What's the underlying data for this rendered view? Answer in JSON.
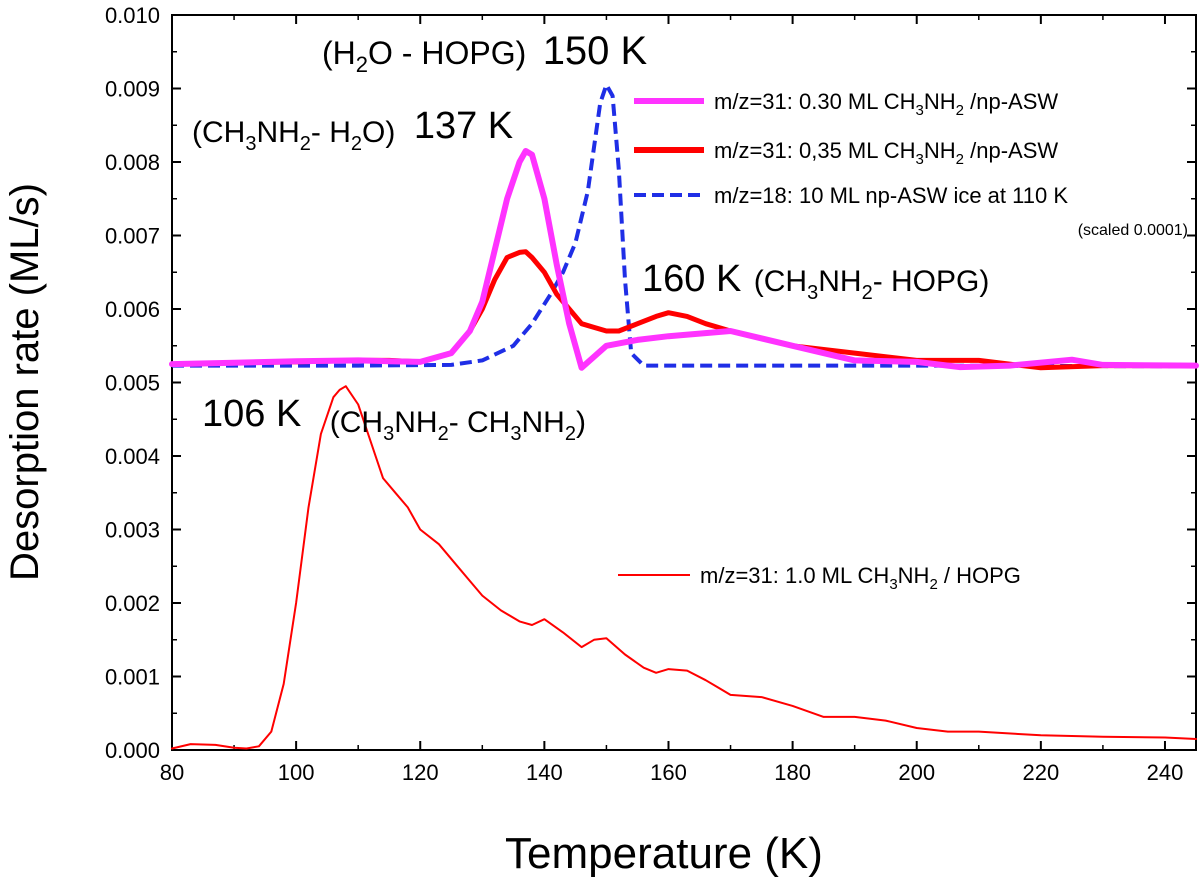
{
  "chart_data": {
    "type": "line",
    "xlabel": "Temperature (K)",
    "ylabel": "Desorption rate (ML/s)",
    "xlim": [
      80,
      245
    ],
    "ylim": [
      0.0,
      0.01
    ],
    "xticks": [
      80,
      100,
      120,
      140,
      160,
      180,
      200,
      220,
      240
    ],
    "xtick_labels": [
      "80",
      "100",
      "120",
      "140",
      "160",
      "180",
      "200",
      "220",
      "240"
    ],
    "yticks": [
      0.0,
      0.001,
      0.002,
      0.003,
      0.004,
      0.005,
      0.006,
      0.007,
      0.008,
      0.009,
      0.01
    ],
    "ytick_labels": [
      "0.000",
      "0.001",
      "0.002",
      "0.003",
      "0.004",
      "0.005",
      "0.006",
      "0.007",
      "0.008",
      "0.009",
      "0.010"
    ],
    "series": [
      {
        "name": "m/z=31: 0.30 ML CH3NH2 /np-ASW",
        "color": "#ff33ff",
        "style": "solid-thick",
        "x": [
          80,
          90,
          100,
          110,
          115,
          120,
          125,
          128,
          130,
          132,
          134,
          136,
          137,
          138,
          140,
          142,
          144,
          146,
          148,
          150,
          155,
          160,
          170,
          180,
          190,
          200,
          207,
          215,
          225,
          230,
          245
        ],
        "y": [
          0.00525,
          0.00527,
          0.00529,
          0.0053,
          0.00529,
          0.00528,
          0.0054,
          0.0057,
          0.0061,
          0.0068,
          0.0075,
          0.008,
          0.00815,
          0.0081,
          0.0075,
          0.0066,
          0.0058,
          0.0052,
          0.00535,
          0.0055,
          0.00558,
          0.00563,
          0.0057,
          0.0055,
          0.0053,
          0.00528,
          0.00521,
          0.00523,
          0.00531,
          0.00524,
          0.00523
        ]
      },
      {
        "name": "m/z=31: 0,35 ML CH3NH2 /np-ASW",
        "color": "#ff0000",
        "style": "solid-thick",
        "x": [
          80,
          90,
          100,
          110,
          115,
          120,
          125,
          128,
          130,
          132,
          134,
          136,
          137,
          138,
          140,
          142,
          144,
          146,
          148,
          150,
          152,
          155,
          158,
          160,
          163,
          166,
          170,
          175,
          180,
          190,
          200,
          210,
          220,
          230,
          245
        ],
        "y": [
          0.00525,
          0.00527,
          0.00528,
          0.0053,
          0.0053,
          0.00528,
          0.0054,
          0.0057,
          0.006,
          0.0064,
          0.0067,
          0.00677,
          0.00678,
          0.0067,
          0.0065,
          0.0062,
          0.006,
          0.0058,
          0.00575,
          0.0057,
          0.0057,
          0.0058,
          0.0059,
          0.00595,
          0.0059,
          0.0058,
          0.0057,
          0.0056,
          0.0055,
          0.0054,
          0.0053,
          0.0053,
          0.0052,
          0.00523,
          0.00523
        ]
      },
      {
        "name": "m/z=18: 10 ML np-ASW ice at 110 K",
        "note": "(scaled 0.0001)",
        "color": "#1f2ee6",
        "style": "dashed",
        "x": [
          80,
          110,
          125,
          130,
          135,
          138,
          141,
          143,
          145,
          147,
          148,
          149,
          150,
          151,
          152,
          153,
          154,
          156,
          170,
          200,
          245
        ],
        "y": [
          0.00523,
          0.00523,
          0.00524,
          0.0053,
          0.0055,
          0.0058,
          0.0062,
          0.0065,
          0.0069,
          0.0076,
          0.0082,
          0.0088,
          0.00905,
          0.0089,
          0.0079,
          0.0064,
          0.0054,
          0.00523,
          0.00523,
          0.00523,
          0.00522
        ]
      },
      {
        "name": "m/z=31:  1.0 ML  CH3NH2 / HOPG",
        "color": "#ff0000",
        "style": "solid-thin",
        "x": [
          80,
          83,
          87,
          90,
          92,
          94,
          96,
          98,
          100,
          102,
          104,
          106,
          107,
          108,
          110,
          112,
          114,
          116,
          118,
          120,
          123,
          126,
          128,
          130,
          133,
          136,
          138,
          140,
          143,
          146,
          148,
          150,
          153,
          156,
          158,
          160,
          163,
          166,
          168,
          170,
          175,
          180,
          185,
          190,
          195,
          200,
          205,
          210,
          220,
          230,
          240,
          245
        ],
        "y": [
          2e-05,
          8e-05,
          7e-05,
          3e-05,
          2e-05,
          5e-05,
          0.00025,
          0.0009,
          0.002,
          0.0033,
          0.0043,
          0.0048,
          0.0049,
          0.00495,
          0.0047,
          0.0042,
          0.0037,
          0.0035,
          0.0033,
          0.003,
          0.0028,
          0.0025,
          0.0023,
          0.0021,
          0.0019,
          0.00175,
          0.0017,
          0.00178,
          0.0016,
          0.0014,
          0.0015,
          0.00152,
          0.0013,
          0.00112,
          0.00105,
          0.0011,
          0.00108,
          0.00095,
          0.00085,
          0.00075,
          0.00072,
          0.0006,
          0.00045,
          0.00045,
          0.0004,
          0.0003,
          0.00025,
          0.00025,
          0.0002,
          0.00018,
          0.00017,
          0.00015
        ]
      }
    ],
    "annotations": {
      "h2o_hopg": {
        "prefix": "(H",
        "sub": "2",
        "suffix": "O - HOPG)",
        "peak": "150 K"
      },
      "ch3nh2_h2o": {
        "p1": "(CH",
        "s1": "3",
        "p2": "NH",
        "s2": "2",
        "p3": "- H",
        "s3": "2",
        "p4": "O)",
        "peak": "137 K"
      },
      "ch3nh2_hopg": {
        "peak": "160 K",
        "p1": "(CH",
        "s1": "3",
        "p2": "NH",
        "s2": "2",
        "p3": "- HOPG)"
      },
      "ch3nh2_ch3nh2": {
        "peak": "106 K",
        "p1": "(CH",
        "s1": "3",
        "p2": "NH",
        "s2": "2",
        "p3": "- CH",
        "s3": "3",
        "p4": "NH",
        "s4": "2",
        "p5": ")"
      }
    },
    "legend": {
      "placement": "top-right",
      "entries": [
        {
          "p1": "m/z=31: 0.30 ML CH",
          "s1": "3",
          "p2": "NH",
          "s2": "2",
          "p3": " /np-ASW"
        },
        {
          "p1": "m/z=31: 0,35 ML CH",
          "s1": "3",
          "p2": "NH",
          "s2": "2",
          "p3": " /np-ASW"
        },
        {
          "p1": "m/z=18: 10 ML np-ASW ice at 110 K",
          "note": "(scaled 0.0001)"
        }
      ],
      "lower_entry": {
        "p1": "m/z=31:  1.0 ML  CH",
        "s1": "3",
        "p2": "NH",
        "s2": "2",
        "p3": " / HOPG"
      }
    }
  }
}
